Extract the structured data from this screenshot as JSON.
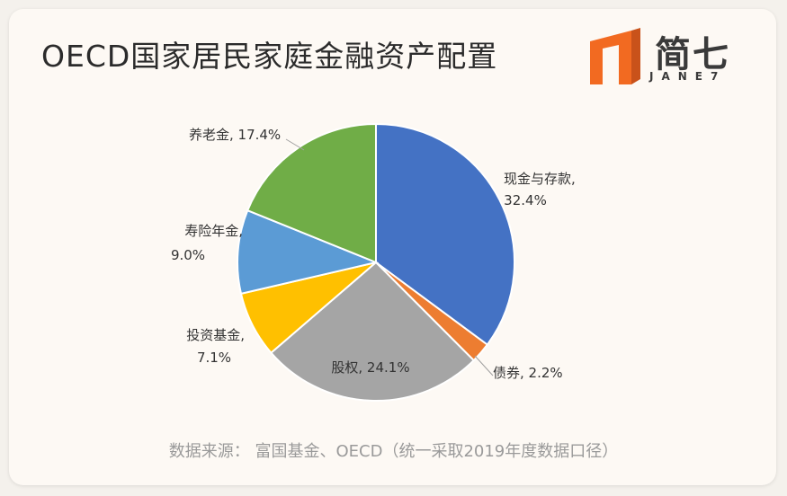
{
  "title": "OECD国家居民家庭金融资产配置",
  "logo": {
    "text": "简七",
    "sub": "JANE7"
  },
  "source": "数据来源：  富国基金、OECD（统一采取2019年度数据口径）",
  "chart_data": {
    "type": "pie",
    "title": "OECD国家居民家庭金融资产配置",
    "slices": [
      {
        "name": "现金与存款",
        "value": 32.4,
        "label_name": "现金与存款,",
        "label_value": "32.4%",
        "color": "#4472c4"
      },
      {
        "name": "债券",
        "value": 2.2,
        "label_name": "债券, 2.2%",
        "label_value": "",
        "color": "#ed7d31"
      },
      {
        "name": "股权",
        "value": 24.1,
        "label_name": "股权, 24.1%",
        "label_value": "",
        "color": "#a5a5a5"
      },
      {
        "name": "投资基金",
        "value": 7.1,
        "label_name": "投资基金,",
        "label_value": "7.1%",
        "color": "#ffc000"
      },
      {
        "name": "寿险年金",
        "value": 9.0,
        "label_name": "寿险年金,",
        "label_value": "9.0%",
        "color": "#5b9bd5"
      },
      {
        "name": "养老金",
        "value": 17.4,
        "label_name": "养老金, 17.4%",
        "label_value": "",
        "color": "#70ad47"
      }
    ]
  }
}
